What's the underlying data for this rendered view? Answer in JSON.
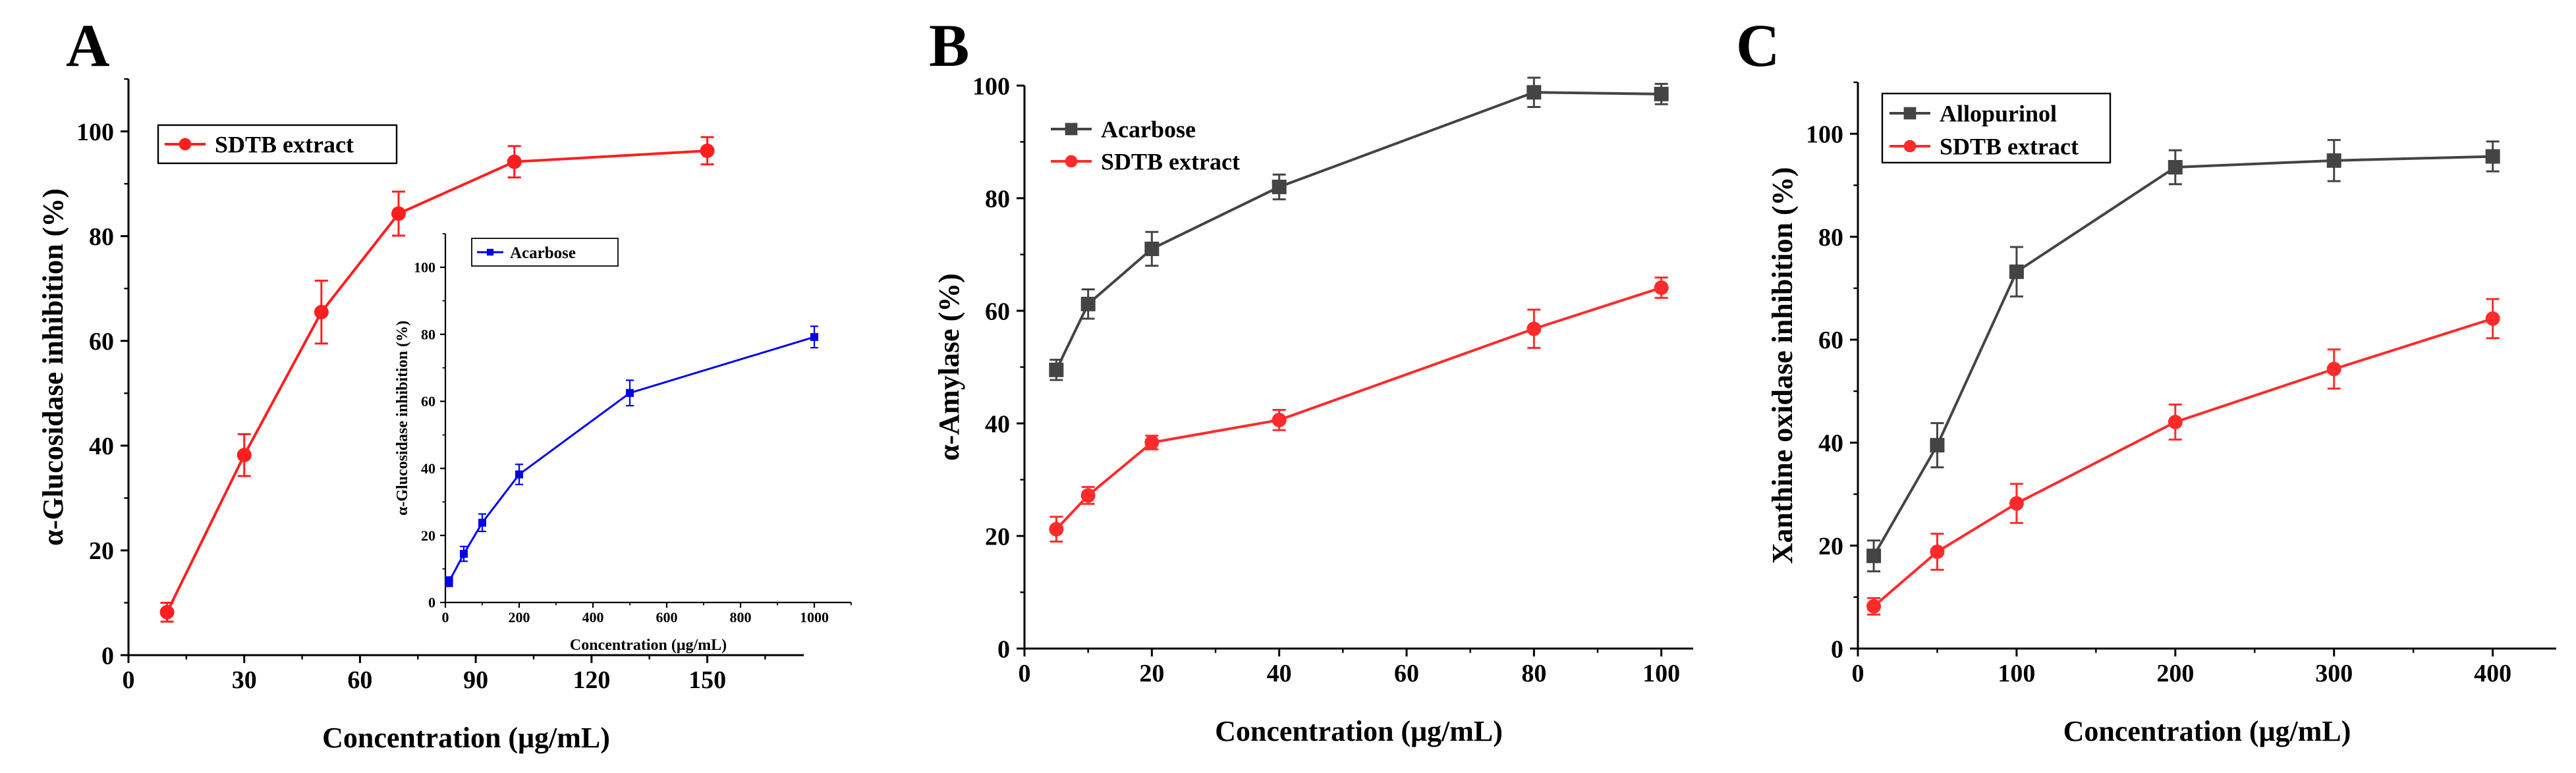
{
  "chart_data": [
    {
      "type": "line",
      "panel_label": "A",
      "xlabel": "Concentration (μg/mL)",
      "ylabel": "α-Glucosidase inhibition (%)",
      "xlim": [
        0,
        175
      ],
      "ylim": [
        0,
        110
      ],
      "xticks": [
        0,
        30,
        60,
        90,
        120,
        150
      ],
      "yticks": [
        0,
        20,
        40,
        60,
        80,
        100
      ],
      "legend": "upper-left",
      "series": [
        {
          "name": "SDTB extract",
          "color": "#ff1f1f",
          "marker": "circle",
          "x": [
            10,
            30,
            50,
            70,
            100,
            150
          ],
          "y": [
            8.2,
            38.2,
            65.5,
            84.3,
            94.2,
            96.3
          ],
          "err": [
            1.8,
            4.0,
            6.0,
            4.2,
            3.0,
            2.6
          ]
        }
      ],
      "inset": {
        "type": "line",
        "xlabel": "Concentration (μg/mL)",
        "ylabel": "α-Glucosidase inhibition (%)",
        "xlim": [
          0,
          1100
        ],
        "ylim": [
          0,
          110
        ],
        "xticks": [
          0,
          200,
          400,
          600,
          800,
          1000
        ],
        "yticks": [
          0,
          20,
          40,
          60,
          80,
          100
        ],
        "legend": "upper-left",
        "series": [
          {
            "name": "Acarbose",
            "color": "#0000ee",
            "marker": "square",
            "x": [
              10,
              50,
              100,
              200,
              500,
              1000
            ],
            "y": [
              6.2,
              14.5,
              23.8,
              38.2,
              62.5,
              79.2
            ],
            "err": [
              1.4,
              2.2,
              2.6,
              3.0,
              3.8,
              3.2
            ]
          }
        ]
      }
    },
    {
      "type": "line",
      "panel_label": "B",
      "xlabel": "Concentration (μg/mL)",
      "ylabel": "α-Amylase (%)",
      "xlim": [
        0,
        105
      ],
      "ylim": [
        0,
        100
      ],
      "xticks": [
        0,
        20,
        40,
        60,
        80,
        100
      ],
      "yticks": [
        0,
        20,
        40,
        60,
        80,
        100
      ],
      "legend": "upper-left",
      "series": [
        {
          "name": "Acarbose",
          "color": "#444444",
          "marker": "square",
          "x": [
            5,
            10,
            20,
            40,
            80,
            100
          ],
          "y": [
            49.5,
            61.2,
            71.0,
            82.0,
            98.8,
            98.5
          ],
          "err": [
            1.8,
            2.6,
            3.0,
            2.2,
            2.6,
            1.8
          ]
        },
        {
          "name": "SDTB extract",
          "color": "#ff2b2b",
          "marker": "circle",
          "x": [
            5,
            10,
            20,
            40,
            80,
            100
          ],
          "y": [
            21.2,
            27.2,
            36.6,
            40.6,
            56.8,
            64.1
          ],
          "err": [
            2.2,
            1.5,
            1.2,
            1.8,
            3.4,
            1.8
          ]
        }
      ]
    },
    {
      "type": "line",
      "panel_label": "C",
      "xlabel": "Concentration (μg/mL)",
      "ylabel": "Xanthine oxidase inhibition (%)",
      "xlim": [
        0,
        440
      ],
      "ylim": [
        0,
        110
      ],
      "xticks": [
        0,
        100,
        200,
        300,
        400
      ],
      "yticks": [
        0,
        20,
        40,
        60,
        80,
        100
      ],
      "legend": "upper-left",
      "series": [
        {
          "name": "Allopurinol",
          "color": "#444444",
          "marker": "square",
          "x": [
            10,
            50,
            100,
            200,
            300,
            400
          ],
          "y": [
            18.0,
            39.5,
            73.2,
            93.5,
            94.8,
            95.6
          ],
          "err": [
            3.0,
            4.3,
            4.8,
            3.3,
            4.0,
            2.9
          ]
        },
        {
          "name": "SDTB extract",
          "color": "#ff2b2b",
          "marker": "circle",
          "x": [
            10,
            50,
            100,
            200,
            300,
            400
          ],
          "y": [
            8.2,
            18.8,
            28.2,
            44.0,
            54.3,
            64.1
          ],
          "err": [
            1.6,
            3.5,
            3.8,
            3.4,
            3.8,
            3.8
          ]
        }
      ]
    }
  ]
}
